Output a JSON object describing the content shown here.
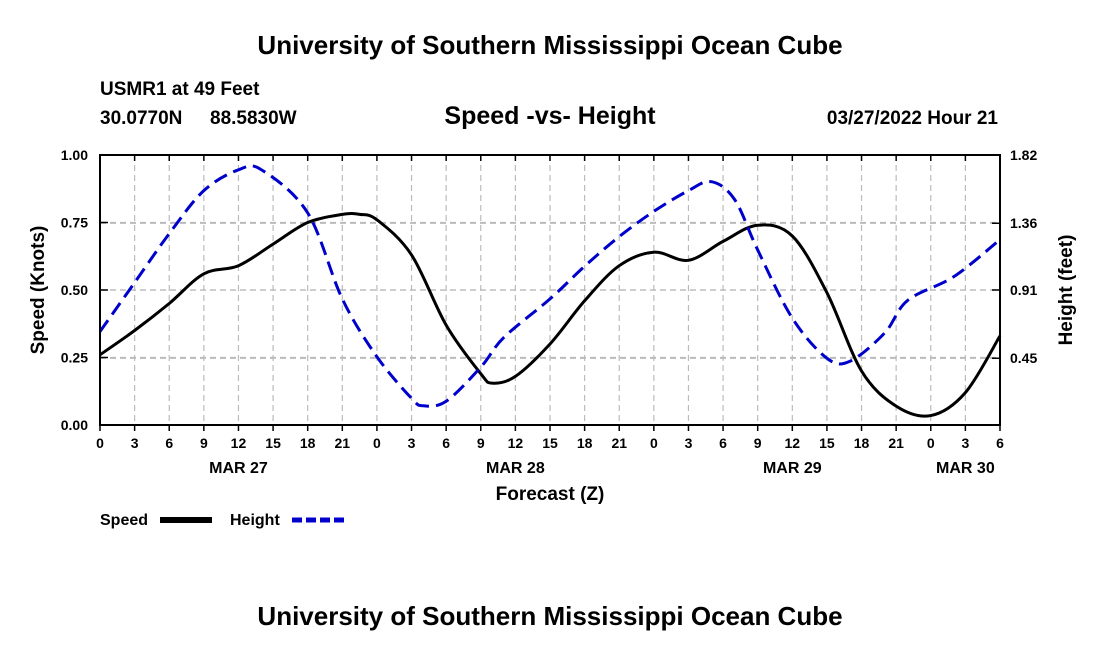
{
  "page_title": "University of Southern Mississippi Ocean Cube",
  "footer_title": "University of Southern Mississippi Ocean Cube",
  "station": {
    "name_line": "USMR1 at 49 Feet",
    "lat": "30.0770N",
    "lon": "88.5830W",
    "datetime": "03/27/2022 Hour 21"
  },
  "chart_data": {
    "type": "line",
    "title": "Speed -vs- Height",
    "xlabel": "Forecast (Z)",
    "ylabel_left": "Speed (Knots)",
    "ylabel_right": "Height (feet)",
    "x_range_hours": [
      0,
      78
    ],
    "x_tick_step_hours": 3,
    "x_tick_labels": [
      "0",
      "3",
      "6",
      "9",
      "12",
      "15",
      "18",
      "21",
      "0",
      "3",
      "6",
      "9",
      "12",
      "15",
      "18",
      "21",
      "0",
      "3",
      "6",
      "9",
      "12",
      "15",
      "18",
      "21",
      "0",
      "3",
      "6"
    ],
    "date_labels": [
      {
        "label": "MAR 27",
        "hour": 12
      },
      {
        "label": "MAR 28",
        "hour": 36
      },
      {
        "label": "MAR 29",
        "hour": 60
      },
      {
        "label": "MAR 30",
        "hour": 75
      }
    ],
    "y_left": {
      "min": 0,
      "max": 1.0,
      "ticks": [
        0,
        0.25,
        0.5,
        0.75,
        1.0
      ],
      "tick_labels": [
        "0.00",
        "0.25",
        "0.50",
        "0.75",
        "1.00"
      ]
    },
    "y_right": {
      "min": 0,
      "max": 1.82,
      "ticks": [
        0.45,
        0.91,
        1.36,
        1.82
      ],
      "tick_labels": [
        "0.45",
        "0.91",
        "1.36",
        "1.82"
      ]
    },
    "grid": true,
    "series": [
      {
        "name": "Speed",
        "axis": "left",
        "color": "#000000",
        "dash": "solid",
        "points": [
          [
            0,
            0.26
          ],
          [
            3,
            0.35
          ],
          [
            6,
            0.45
          ],
          [
            9,
            0.56
          ],
          [
            12,
            0.59
          ],
          [
            15,
            0.67
          ],
          [
            18,
            0.75
          ],
          [
            21,
            0.78
          ],
          [
            22.5,
            0.78
          ],
          [
            24,
            0.76
          ],
          [
            27,
            0.63
          ],
          [
            30,
            0.37
          ],
          [
            33,
            0.19
          ],
          [
            34,
            0.155
          ],
          [
            36,
            0.18
          ],
          [
            39,
            0.3
          ],
          [
            42,
            0.46
          ],
          [
            45,
            0.59
          ],
          [
            48,
            0.64
          ],
          [
            51,
            0.61
          ],
          [
            54,
            0.68
          ],
          [
            57,
            0.74
          ],
          [
            60,
            0.7
          ],
          [
            63,
            0.49
          ],
          [
            66,
            0.2
          ],
          [
            69,
            0.07
          ],
          [
            72,
            0.035
          ],
          [
            75,
            0.12
          ],
          [
            78,
            0.33
          ]
        ]
      },
      {
        "name": "Height",
        "axis": "right",
        "color": "#0000cc",
        "dash": "dashed",
        "points": [
          [
            0,
            0.63
          ],
          [
            3,
            0.96
          ],
          [
            6,
            1.29
          ],
          [
            9,
            1.58
          ],
          [
            12,
            1.72
          ],
          [
            14,
            1.72
          ],
          [
            18,
            1.43
          ],
          [
            21,
            0.85
          ],
          [
            24,
            0.46
          ],
          [
            27,
            0.18
          ],
          [
            28,
            0.13
          ],
          [
            30,
            0.16
          ],
          [
            33,
            0.39
          ],
          [
            35,
            0.59
          ],
          [
            39,
            0.85
          ],
          [
            42,
            1.07
          ],
          [
            45,
            1.27
          ],
          [
            48,
            1.44
          ],
          [
            51,
            1.58
          ],
          [
            53,
            1.64
          ],
          [
            55,
            1.52
          ],
          [
            57,
            1.18
          ],
          [
            60,
            0.72
          ],
          [
            63,
            0.45
          ],
          [
            65,
            0.43
          ],
          [
            68,
            0.62
          ],
          [
            70,
            0.84
          ],
          [
            74,
            1.0
          ],
          [
            78,
            1.25
          ]
        ]
      }
    ],
    "legend_placement": "bottom-left"
  }
}
